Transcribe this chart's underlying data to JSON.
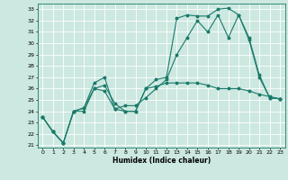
{
  "xlabel": "Humidex (Indice chaleur)",
  "bg_color": "#cce8e0",
  "grid_color": "#ffffff",
  "line_color": "#1a7a6a",
  "xlim": [
    -0.5,
    23.5
  ],
  "ylim": [
    20.8,
    33.5
  ],
  "yticks": [
    21,
    22,
    23,
    24,
    25,
    26,
    27,
    28,
    29,
    30,
    31,
    32,
    33
  ],
  "xticks": [
    0,
    1,
    2,
    3,
    4,
    5,
    6,
    7,
    8,
    9,
    10,
    11,
    12,
    13,
    14,
    15,
    16,
    17,
    18,
    19,
    20,
    21,
    22,
    23
  ],
  "line1_x": [
    0,
    1,
    2,
    3,
    4,
    5,
    6,
    7,
    8,
    9,
    10,
    11,
    12,
    13,
    14,
    15,
    16,
    17,
    18,
    19,
    20,
    21,
    22,
    23
  ],
  "line1_y": [
    23.5,
    22.2,
    21.2,
    24.0,
    24.3,
    26.5,
    27.0,
    24.2,
    24.0,
    24.0,
    26.0,
    26.8,
    27.0,
    32.2,
    32.5,
    32.4,
    32.4,
    33.0,
    33.1,
    32.5,
    30.5,
    27.2,
    25.2,
    25.1
  ],
  "line2_x": [
    0,
    1,
    2,
    3,
    4,
    5,
    6,
    7,
    8,
    9,
    10,
    11,
    12,
    13,
    14,
    15,
    16,
    17,
    18,
    19,
    20,
    21,
    22,
    23
  ],
  "line2_y": [
    23.5,
    22.2,
    21.2,
    24.0,
    24.3,
    26.0,
    25.8,
    24.2,
    24.5,
    24.5,
    25.2,
    26.0,
    26.8,
    29.0,
    30.5,
    32.0,
    31.0,
    32.5,
    30.5,
    32.5,
    30.3,
    27.0,
    25.2,
    25.1
  ],
  "line3_x": [
    0,
    1,
    2,
    3,
    4,
    5,
    6,
    7,
    8,
    9,
    10,
    11,
    12,
    13,
    14,
    15,
    16,
    17,
    18,
    19,
    20,
    21,
    22,
    23
  ],
  "line3_y": [
    23.5,
    22.2,
    21.2,
    24.0,
    24.0,
    26.0,
    26.3,
    24.7,
    24.0,
    24.0,
    26.0,
    26.2,
    26.5,
    26.5,
    26.5,
    26.5,
    26.3,
    26.0,
    26.0,
    26.0,
    25.8,
    25.5,
    25.3,
    25.1
  ]
}
